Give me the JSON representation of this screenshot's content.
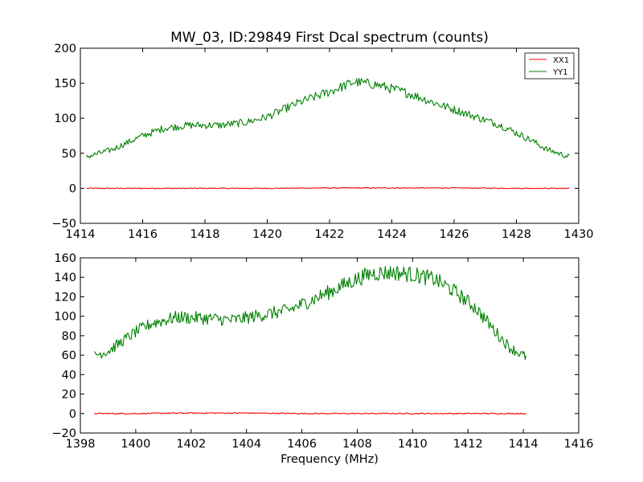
{
  "chart_data": [
    {
      "type": "line",
      "title": "MW_03, ID:29849 First Dcal spectrum (counts)",
      "xlabel": "",
      "ylabel": "",
      "xlim": [
        1414,
        1430
      ],
      "ylim": [
        -50,
        200
      ],
      "xticks": [
        "1414",
        "1416",
        "1418",
        "1420",
        "1422",
        "1424",
        "1426",
        "1428",
        "1430"
      ],
      "yticks": [
        "200",
        "150",
        "100",
        "50",
        "0",
        "−50"
      ],
      "xtick_values": [
        1414,
        1416,
        1418,
        1420,
        1422,
        1424,
        1426,
        1428,
        1430
      ],
      "ytick_values": [
        200,
        150,
        100,
        50,
        0,
        -50
      ],
      "legend": {
        "placement": "top-right",
        "entries": [
          "XX1",
          "YY1"
        ]
      },
      "grid": false,
      "noise": 5,
      "series": [
        {
          "name": "XX1",
          "color": "#ff0000",
          "x": [
            1414.2,
            1416,
            1418,
            1420,
            1422,
            1424,
            1426,
            1428,
            1429.7
          ],
          "y": [
            0,
            0,
            0,
            0,
            0.5,
            0.5,
            0.5,
            0,
            0
          ]
        },
        {
          "name": "YY1",
          "color": "#008000",
          "x": [
            1414.2,
            1415,
            1416,
            1416.7,
            1417.5,
            1418.5,
            1419.3,
            1420.0,
            1420.5,
            1421.0,
            1422.0,
            1422.8,
            1423.5,
            1424.5,
            1425.5,
            1426.5,
            1427.5,
            1428.5,
            1429.0,
            1429.7
          ],
          "y": [
            45,
            55,
            75,
            86,
            90,
            90,
            94,
            102,
            112,
            122,
            138,
            152,
            148,
            136,
            120,
            105,
            90,
            68,
            55,
            45
          ]
        }
      ]
    },
    {
      "type": "line",
      "title": "",
      "xlabel": "Frequency (MHz)",
      "ylabel": "",
      "xlim": [
        1398,
        1416
      ],
      "ylim": [
        -20,
        160
      ],
      "xticks": [
        "1398",
        "1400",
        "1402",
        "1404",
        "1406",
        "1408",
        "1410",
        "1412",
        "1414",
        "1416"
      ],
      "yticks": [
        "160",
        "140",
        "120",
        "100",
        "80",
        "60",
        "40",
        "20",
        "0",
        "−20"
      ],
      "xtick_values": [
        1398,
        1400,
        1402,
        1404,
        1406,
        1408,
        1410,
        1412,
        1414,
        1416
      ],
      "ytick_values": [
        160,
        140,
        120,
        100,
        80,
        60,
        40,
        20,
        0,
        -20
      ],
      "grid": false,
      "noise": 6,
      "series": [
        {
          "name": "XX1",
          "color": "#ff0000",
          "x": [
            1398.5,
            1400,
            1402,
            1404,
            1406,
            1408,
            1410,
            1412,
            1414.1
          ],
          "y": [
            0,
            0,
            0.5,
            0.5,
            0,
            0,
            0,
            0,
            0
          ]
        },
        {
          "name": "YY1",
          "color": "#008000",
          "x": [
            1398.5,
            1399.0,
            1399.5,
            1400.0,
            1400.6,
            1401.5,
            1402.5,
            1403.5,
            1404.5,
            1405.5,
            1406.3,
            1407.0,
            1407.8,
            1408.5,
            1409.3,
            1410.0,
            1410.8,
            1411.5,
            1412.3,
            1413.0,
            1413.5,
            1414.1
          ],
          "y": [
            60,
            64,
            74,
            84,
            93,
            99,
            98,
            96,
            101,
            106,
            116,
            125,
            136,
            144,
            145,
            143,
            138,
            126,
            108,
            84,
            68,
            58
          ]
        }
      ]
    }
  ]
}
